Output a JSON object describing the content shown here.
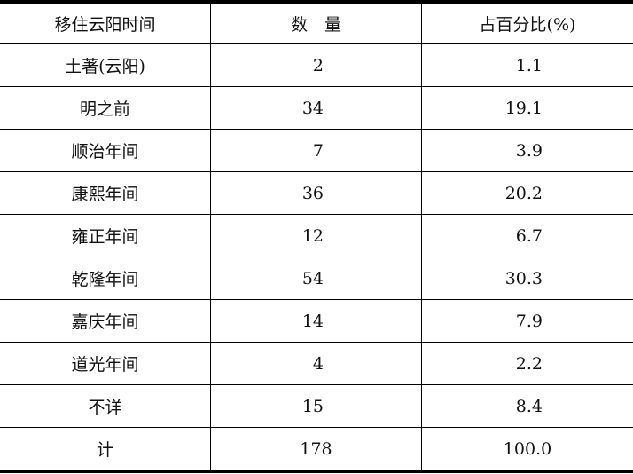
{
  "table": {
    "headers": [
      "移住云阳时间",
      "数　量",
      "占百分比(%)"
    ],
    "rows": [
      [
        "土著(云阳)",
        "2",
        "1.1"
      ],
      [
        "明之前",
        "34",
        "19.1"
      ],
      [
        "顺治年间",
        "7",
        "3.9"
      ],
      [
        "康熙年间",
        "36",
        "20.2"
      ],
      [
        "雍正年间",
        "12",
        "6.7"
      ],
      [
        "乾隆年间",
        "54",
        "30.3"
      ],
      [
        "嘉庆年间",
        "14",
        "7.9"
      ],
      [
        "道光年间",
        "4",
        "2.2"
      ],
      [
        "不详",
        "15",
        "8.4"
      ]
    ],
    "total": [
      "计",
      "178",
      "100.0"
    ]
  }
}
